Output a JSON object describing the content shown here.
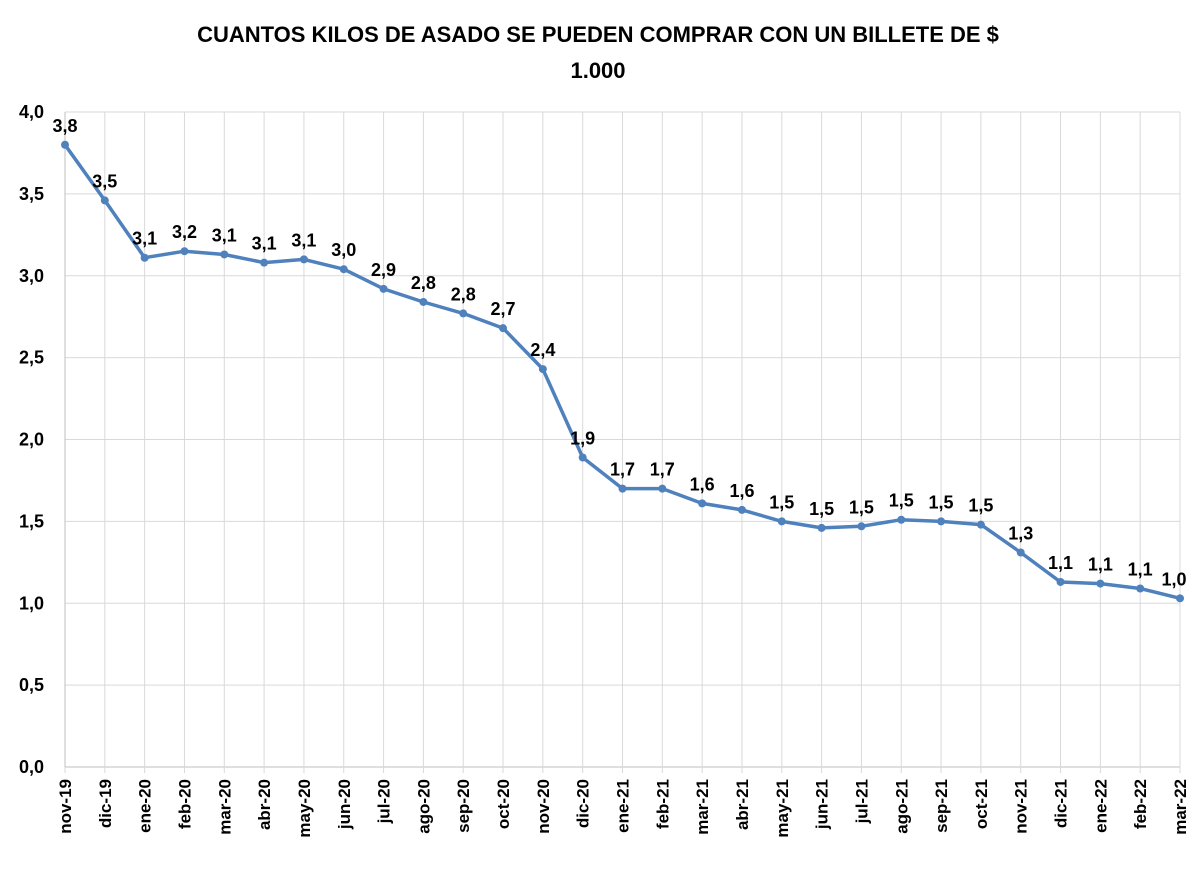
{
  "chart_data": {
    "type": "line",
    "title_line1": "CUANTOS  KILOS  DE  ASADO  SE  PUEDEN  COMPRAR  CON  UN  BILLETE  DE  $",
    "title_line2": "1.000",
    "ylim": [
      0,
      4
    ],
    "ytick_step": 0.5,
    "yticks": [
      "0,0",
      "0,5",
      "1,0",
      "1,5",
      "2,0",
      "2,5",
      "3,0",
      "3,5",
      "4,0"
    ],
    "grid": true,
    "legend": "none",
    "color": "#4f81bd",
    "categories": [
      "nov-19",
      "dic-19",
      "ene-20",
      "feb-20",
      "mar-20",
      "abr-20",
      "may-20",
      "jun-20",
      "jul-20",
      "ago-20",
      "sep-20",
      "oct-20",
      "nov-20",
      "dic-20",
      "ene-21",
      "feb-21",
      "mar-21",
      "abr-21",
      "may-21",
      "jun-21",
      "jul-21",
      "ago-21",
      "sep-21",
      "oct-21",
      "nov-21",
      "dic-21",
      "ene-22",
      "feb-22",
      "mar-22"
    ],
    "values": [
      3.8,
      3.46,
      3.11,
      3.15,
      3.13,
      3.08,
      3.1,
      3.04,
      2.92,
      2.84,
      2.77,
      2.68,
      2.43,
      1.89,
      1.7,
      1.7,
      1.61,
      1.57,
      1.5,
      1.46,
      1.47,
      1.51,
      1.5,
      1.48,
      1.31,
      1.13,
      1.12,
      1.09,
      1.03
    ],
    "data_labels": [
      "3,8",
      "3,5",
      "3,1",
      "3,2",
      "3,1",
      "3,1",
      "3,1",
      "3,0",
      "2,9",
      "2,8",
      "2,8",
      "2,7",
      "2,4",
      "1,9",
      "1,7",
      "1,7",
      "1,6",
      "1,6",
      "1,5",
      "1,5",
      "1,5",
      "1,5",
      "1,5",
      "1,5",
      "1,3",
      "1,1",
      "1,1",
      "1,1",
      "1,0"
    ]
  }
}
